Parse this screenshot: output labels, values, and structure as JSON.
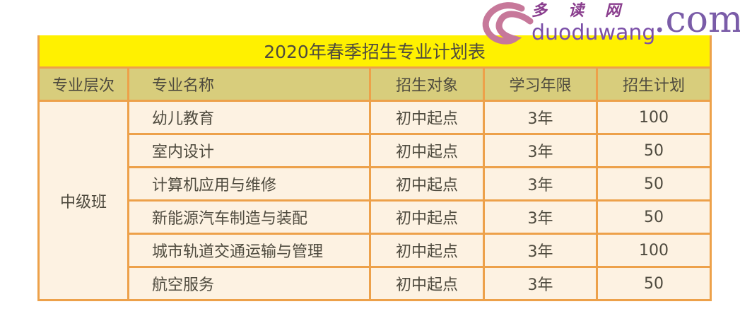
{
  "title": "2020年春季招生专业计划表",
  "headers": [
    "专业层次",
    "专业名称",
    "招生对象",
    "学习年限",
    "招生计划"
  ],
  "level": "中级班",
  "rows": [
    {
      "name": "幼儿教育",
      "target": "初中起点",
      "years": "3年",
      "plan": "100"
    },
    {
      "name": "室内设计",
      "target": "初中起点",
      "years": "3年",
      "plan": "50"
    },
    {
      "name": "计算机应用与维修",
      "target": "初中起点",
      "years": "3年",
      "plan": "50"
    },
    {
      "name": "新能源汽车制造与装配",
      "target": "初中起点",
      "years": "3年",
      "plan": "50"
    },
    {
      "name": "城市轨道交通运输与管理",
      "target": "初中起点",
      "years": "3年",
      "plan": "100"
    },
    {
      "name": "航空服务",
      "target": "初中起点",
      "years": "3年",
      "plan": "50"
    }
  ],
  "watermark": {
    "cn1": "多",
    "cn2": "读",
    "cn3": "网",
    "en": "duoduwang",
    "com": ".com"
  },
  "colors": {
    "title_bg": "#fff100",
    "header_bg": "#d8cd7c",
    "cell_bg": "#fdf2e2",
    "border": "#eda14a"
  }
}
